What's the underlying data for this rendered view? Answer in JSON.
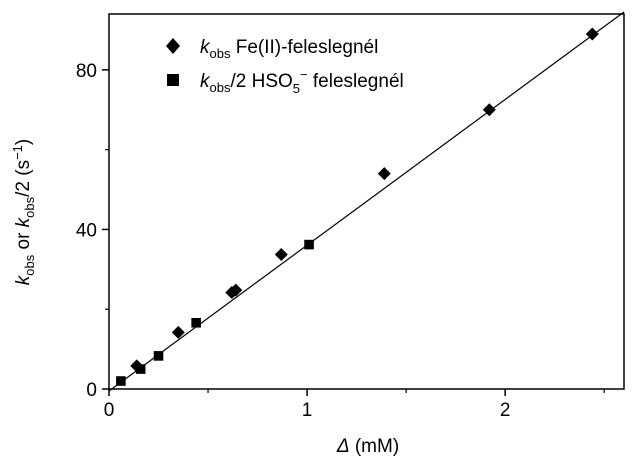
{
  "chart_data": {
    "type": "scatter",
    "xlabel": {
      "symbol": "Δ",
      "unit": " (mM)"
    },
    "ylabel": {
      "k1": "k",
      "sub1": "obs",
      "or": " or ",
      "k2": "k",
      "sub2": "obs",
      "rest": "/2 (s",
      "sup": "−1",
      "close": ")"
    },
    "xlim": [
      0,
      2.6
    ],
    "ylim": [
      0,
      94
    ],
    "x_ticks": [
      0,
      1,
      2
    ],
    "x_tick_labels": [
      "0",
      "1",
      "2"
    ],
    "y_ticks": [
      0,
      40,
      80
    ],
    "y_tick_labels": [
      "0",
      "40",
      "80"
    ],
    "grid": false,
    "legend_position": "top-left",
    "series": [
      {
        "marker": "diamond",
        "legend": {
          "k": "k",
          "sub": "obs",
          "text": " Fe(II)-feleslegnél"
        },
        "points": [
          {
            "x": 0.14,
            "y": 5.8
          },
          {
            "x": 0.35,
            "y": 14.2
          },
          {
            "x": 0.62,
            "y": 24.2
          },
          {
            "x": 0.64,
            "y": 24.8
          },
          {
            "x": 0.87,
            "y": 33.7
          },
          {
            "x": 1.39,
            "y": 54.0
          },
          {
            "x": 1.92,
            "y": 70.0
          },
          {
            "x": 2.44,
            "y": 89.0
          }
        ]
      },
      {
        "marker": "square",
        "legend": {
          "k": "k",
          "sub": "obs",
          "text1": "/2 HSO",
          "sub2": "5",
          "sup2": "−",
          "text2": " feleslegnél"
        },
        "points": [
          {
            "x": 0.06,
            "y": 2.0
          },
          {
            "x": 0.16,
            "y": 5.0
          },
          {
            "x": 0.25,
            "y": 8.3
          },
          {
            "x": 0.44,
            "y": 16.6
          },
          {
            "x": 1.01,
            "y": 36.2
          }
        ]
      }
    ],
    "fit_line": {
      "x0": 0,
      "y0": -0.5,
      "x1": 2.6,
      "y1": 94.5
    }
  }
}
